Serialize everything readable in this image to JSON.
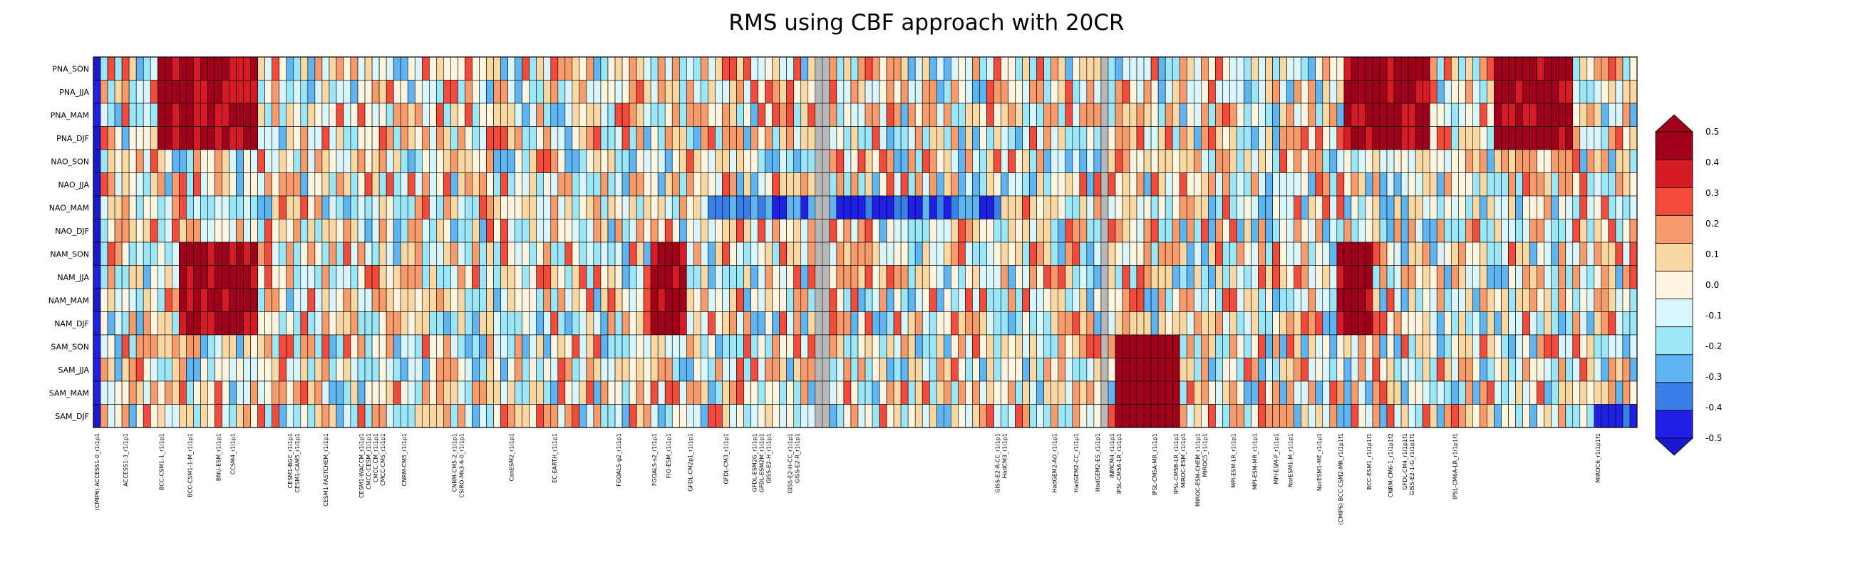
{
  "chart_data": {
    "type": "heatmap",
    "title": "RMS using CBF approach with 20CR",
    "rows": [
      "PNA_SON",
      "PNA_JJA",
      "PNA_MAM",
      "PNA_DJF",
      "NAO_SON",
      "NAO_JJA",
      "NAO_MAM",
      "NAO_DJF",
      "NAM_SON",
      "NAM_JJA",
      "NAM_MAM",
      "NAM_DJF",
      "SAM_SON",
      "SAM_JJA",
      "SAM_MAM",
      "SAM_DJF"
    ],
    "colorbar": {
      "ticks": [
        "0.5",
        "0.4",
        "0.3",
        "0.2",
        "0.1",
        "0.0",
        "-0.1",
        "-0.2",
        "-0.3",
        "-0.4",
        "-0.5"
      ],
      "bounds": [
        -0.5,
        0.5
      ],
      "colors": [
        "#1f1fe6",
        "#3a7ee8",
        "#5fb4f2",
        "#9be6f7",
        "#d8f6fb",
        "#fdf5df",
        "#fad8a3",
        "#f79a6c",
        "#f24b3c",
        "#d61a26",
        "#a1001a"
      ],
      "under_color": "#1a1acc",
      "over_color": "#a1001a",
      "missing_color": "#b8b8b8"
    },
    "group_gaps_after_col": [
      102,
      112
    ],
    "missing_value_columns": [
      101,
      102,
      141
    ],
    "column_labels": {
      "0": "(CMIP6) ACCESS1-0_r1i1p1",
      "4": "ACCESS1-3_r1i1p1",
      "9": "BCC-CSM1-1_r1i1p1",
      "13": "BCC-CSM1-1-M_r1i1p1",
      "17": "BNU-ESM_r1i1p1",
      "19": "CCSM4_r1i1p1",
      "27": "CESM1-BGC_r1i1p1",
      "28": "CESM1-CAM5_r1i1p1",
      "32": "CESM1-FASTCHEM_r1i1p1",
      "37": "CESM1-WACCM_r1i1p1",
      "38": "CMCC-CESM_r1i1p1",
      "39": "CMCC-CM_r1i1p1",
      "40": "CMCC-CMS_r1i1p1",
      "43": "CNRM-CM5_r1i1p1",
      "50": "CNRM-CM5-2_r1i1p1",
      "51": "CSIRO-Mk3-6-0_r1i1p1",
      "58": "CanESM2_r1i1p1",
      "64": "EC-EARTH_r1i1p1",
      "73": "FGOALS-g2_r1i1p1",
      "78": "FGOALS-s2_r1i1p1",
      "80": "FIO-ESM_r1i1p1",
      "83": "GFDL-CM2p1_r1i1p1",
      "88": "GFDL-CM3_r1i1p1",
      "92": "GFDL-ESM2G_r1i1p1",
      "93": "GFDL-ESM2M_r1i1p1",
      "94": "GISS-E2-H_r1i1p1",
      "97": "GISS-E2-H-CC_r1i1p1",
      "98": "GISS-E2-R_r1i1p1",
      "126": "GISS-E2-R-CC_r1i1p1",
      "127": "HadCM3_r1i1p1",
      "134": "HadGEM2-AO_r1i1p1",
      "137": "HadGEM2-CC_r1i1p1",
      "140": "HadGEM2-ES_r1i1p1",
      "142": "INMCM4_r1i1p1",
      "143": "IPSL-CM5A-LR_r1i1p1",
      "148": "IPSL-CM5A-MR_r1i1p1",
      "151": "IPSL-CM5B-LR_r1i1p1",
      "152": "MIROC-ESM_r1i1p1",
      "154": "MIROC-ESM-CHEM_r1i1p1",
      "155": "MIROC5_r1i1p1",
      "159": "MPI-ESM-LR_r1i1p1",
      "162": "MPI-ESM-MR_r1i1p1",
      "165": "MPI-ESM-P_r1i1p1",
      "167": "NorESM1-M_r1i1p1",
      "171": "NorESM1-ME_r1i1p1",
      "174": "(CMIP6) BCC-CSM2-MR_r1i1p1f1",
      "178": "BCC-ESM1_r1i1p1f1",
      "181": "CNRM-CM6-1_r1i1p1f2",
      "183": "GFDL-CM4_r1i1p1f1",
      "184": "GISS-E2-1-G_r1i1p1f1",
      "190": "IPSL-CM6A-LR_r1i1p1f1",
      "210": "MIROC6_r1i1p1f1"
    }
  }
}
